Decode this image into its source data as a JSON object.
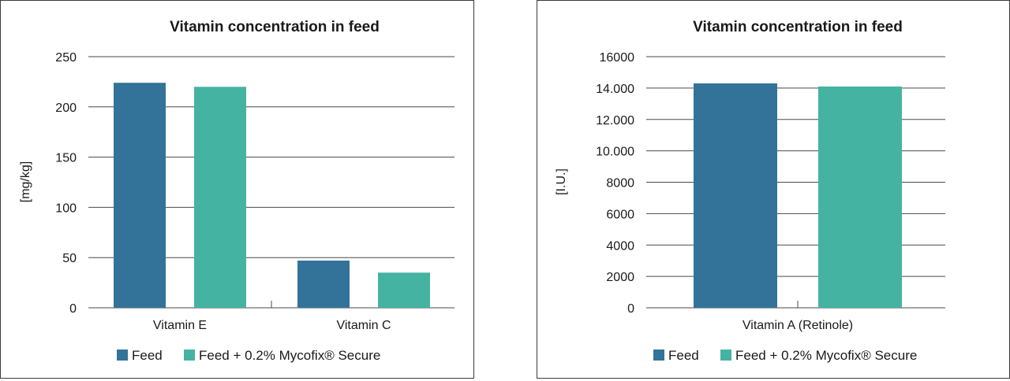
{
  "colors": {
    "feed": "#337399",
    "feed_mycofix": "#45B3A1"
  },
  "chart_data": [
    {
      "type": "bar",
      "title": "Vitamin concentration in feed",
      "ylabel": "[mg/kg]",
      "xlabel": "",
      "categories": [
        "Vitamin E",
        "Vitamin C"
      ],
      "ylim": [
        0,
        250
      ],
      "yticks": [
        0,
        50,
        100,
        150,
        200,
        250
      ],
      "ytick_labels": [
        "0",
        "50",
        "100",
        "150",
        "200",
        "250"
      ],
      "series": [
        {
          "name": "Feed",
          "color": "#337399",
          "values": [
            224,
            47
          ]
        },
        {
          "name": "Feed + 0.2% Mycofix® Secure",
          "color": "#45B3A1",
          "values": [
            220,
            35
          ]
        }
      ],
      "grid": true,
      "legend": "bottom"
    },
    {
      "type": "bar",
      "title": "Vitamin concentration in feed",
      "ylabel": "[I.U.]",
      "xlabel": "",
      "categories": [
        "Vitamin A (Retinole)"
      ],
      "ylim": [
        0,
        16000
      ],
      "yticks": [
        0,
        2000,
        4000,
        6000,
        8000,
        10000,
        12000,
        14000,
        16000
      ],
      "ytick_labels": [
        "0",
        "2000",
        "4000",
        "6000",
        "8000",
        "10.000",
        "12.000",
        "14.000",
        "16000"
      ],
      "series": [
        {
          "name": "Feed",
          "color": "#337399",
          "values": [
            14300
          ]
        },
        {
          "name": "Feed + 0.2% Mycofix® Secure",
          "color": "#45B3A1",
          "values": [
            14100
          ]
        }
      ],
      "grid": true,
      "legend": "bottom"
    }
  ]
}
